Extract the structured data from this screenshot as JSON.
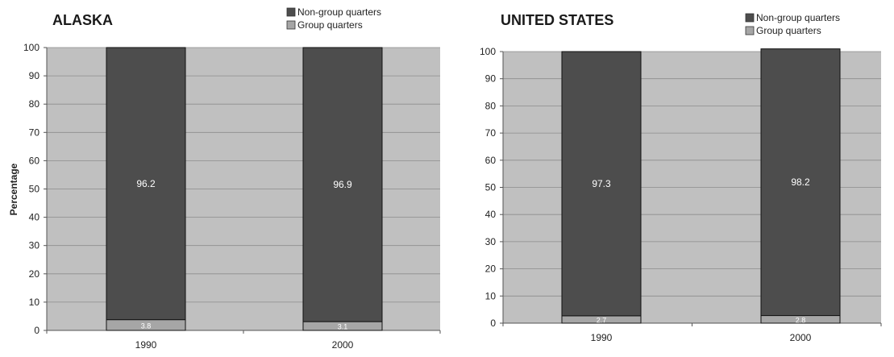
{
  "chart_data": [
    {
      "type": "bar",
      "stacked": true,
      "title": "ALASKA",
      "ylabel": "Percentage",
      "xlabel": "",
      "ylim": [
        0,
        100
      ],
      "y_ticks": [
        "0",
        "10",
        "20",
        "30",
        "40",
        "50",
        "60",
        "70",
        "80",
        "90",
        "100"
      ],
      "categories": [
        "1990",
        "2000"
      ],
      "legend_position": "top-right",
      "grid": true,
      "series": [
        {
          "name": "Group quarters",
          "values": [
            3.8,
            3.1
          ],
          "labels": [
            "3.8",
            "3.1"
          ],
          "color": "#a6a6a6"
        },
        {
          "name": "Non-group quarters",
          "values": [
            96.2,
            96.9
          ],
          "labels": [
            "96.2",
            "96.9"
          ],
          "color": "#4d4d4d"
        }
      ],
      "legend_order": [
        "Non-group quarters",
        "Group quarters"
      ],
      "plot_bg": "#c0c0c0"
    },
    {
      "type": "bar",
      "stacked": true,
      "title": "UNITED STATES",
      "ylabel": "",
      "xlabel": "",
      "ylim": [
        0,
        100
      ],
      "y_ticks": [
        "0",
        "10",
        "20",
        "30",
        "40",
        "50",
        "60",
        "70",
        "80",
        "90",
        "100"
      ],
      "categories": [
        "1990",
        "2000"
      ],
      "legend_position": "top-right",
      "grid": true,
      "series": [
        {
          "name": "Group quarters",
          "values": [
            2.7,
            2.8
          ],
          "labels": [
            "2.7",
            "2.8"
          ],
          "color": "#a6a6a6"
        },
        {
          "name": "Non-group quarters",
          "values": [
            97.3,
            98.2
          ],
          "labels": [
            "97.3",
            "98.2"
          ],
          "color": "#4d4d4d"
        }
      ],
      "legend_order": [
        "Non-group quarters",
        "Group quarters"
      ],
      "plot_bg": "#c0c0c0"
    }
  ]
}
